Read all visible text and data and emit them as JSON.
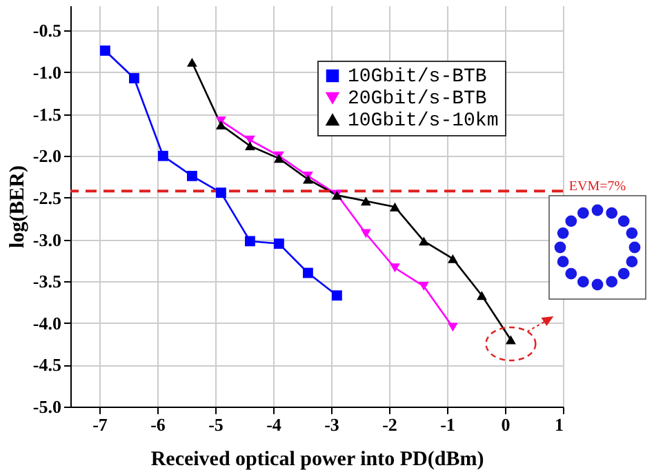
{
  "chart_data": {
    "type": "line",
    "xlabel": "Received optical power into PD(dBm)",
    "ylabel": "log(BER)",
    "xlim": [
      -7.5,
      1
    ],
    "xticks": [
      -7,
      -6,
      -5,
      -4,
      -3,
      -2,
      -1,
      0,
      1
    ],
    "ylim": [
      -5.0,
      -0.2
    ],
    "yticks": [
      {
        "value": -5,
        "label": "-5.0"
      },
      {
        "value": -4.5,
        "label": "-4.5"
      },
      {
        "value": -4,
        "label": "-4.0"
      },
      {
        "value": -3.5,
        "label": "-3.5"
      },
      {
        "value": -3,
        "label": "-3.0"
      },
      {
        "value": -2.5,
        "label": "-2.5"
      },
      {
        "value": -2,
        "label": "-2.0"
      },
      {
        "value": -1.5,
        "label": "-1.5"
      },
      {
        "value": -1,
        "label": "-1.0"
      },
      {
        "value": -0.5,
        "label": "-0.5"
      }
    ],
    "grid": true,
    "legend": "top right",
    "series": [
      {
        "name": "10Gbit/s-BTB",
        "color": "#0000ff",
        "marker": "square",
        "x": [
          -6.9,
          -6.4,
          -5.9,
          -5.4,
          -4.9,
          -4.4,
          -3.9,
          -3.4,
          -2.9
        ],
        "values": [
          -0.74,
          -1.07,
          -2.0,
          -2.24,
          -2.44,
          -3.02,
          -3.05,
          -3.4,
          -3.67
        ]
      },
      {
        "name": "20Gbit/s-BTB",
        "color": "#ff00ff",
        "marker": "triangle-down",
        "x": [
          -4.9,
          -4.4,
          -3.9,
          -3.4,
          -2.9,
          -2.4,
          -1.9,
          -1.4,
          -0.9
        ],
        "values": [
          -1.58,
          -1.81,
          -2.0,
          -2.24,
          -2.46,
          -2.93,
          -3.34,
          -3.56,
          -4.05
        ]
      },
      {
        "name": "10Gbit/s-10km",
        "color": "#000000",
        "marker": "triangle",
        "x": [
          -5.4,
          -4.9,
          -4.4,
          -3.9,
          -3.4,
          -2.9,
          -2.4,
          -1.9,
          -1.4,
          -0.9,
          -0.4,
          0.1
        ],
        "values": [
          -0.88,
          -1.63,
          -1.88,
          -2.03,
          -2.28,
          -2.47,
          -2.54,
          -2.61,
          -3.02,
          -3.23,
          -3.67,
          -4.2
        ]
      }
    ],
    "ref_lines": [
      {
        "axis": "y",
        "value": -2.42,
        "color": "#e02020",
        "line_style": "dashed"
      }
    ],
    "annotations": [
      "EVM=7%"
    ]
  }
}
